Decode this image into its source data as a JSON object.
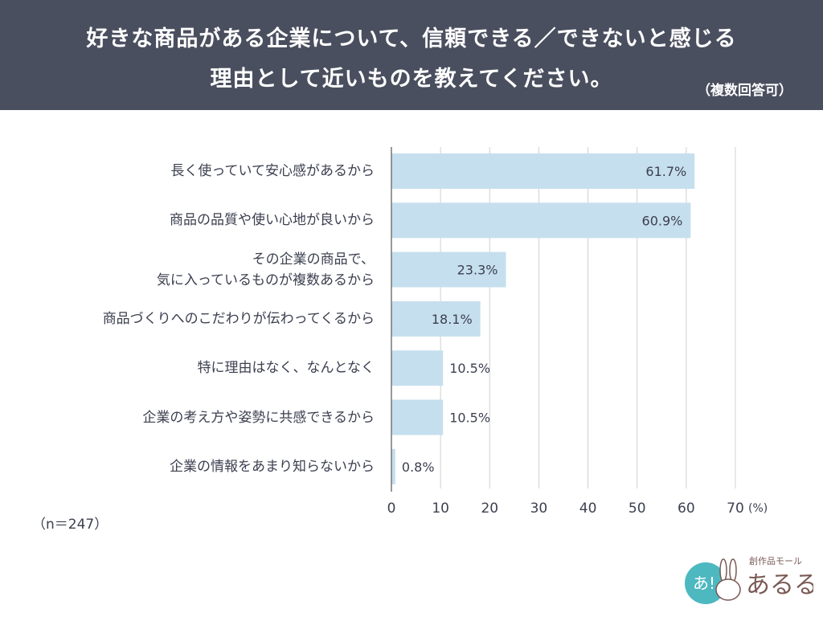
{
  "header": {
    "title_line1": "好きな商品がある企業について、信頼できる／できないと感じる",
    "title_line2": "理由として近いものを教えてください。",
    "note": "（複数回答可）"
  },
  "sample_size": "（n＝247）",
  "logo": {
    "text": "創作品モール あるる",
    "mark": "あ!"
  },
  "colors": {
    "header_bg": "#4a4f5f",
    "bar": "#c6dfee",
    "text": "#3c4050",
    "grid": "#d0d0d0",
    "logo_teal": "#4db8c0",
    "logo_brown": "#7a5a55"
  },
  "chart_data": {
    "type": "bar",
    "orientation": "horizontal",
    "categories": [
      [
        "長く使っていて安心感があるから"
      ],
      [
        "商品の品質や使い心地が良いから"
      ],
      [
        "その企業の商品で、",
        "気に入っているものが複数あるから"
      ],
      [
        "商品づくりへのこだわりが伝わってくるから"
      ],
      [
        "特に理由はなく、なんとなく"
      ],
      [
        "企業の考え方や姿勢に共感できるから"
      ],
      [
        "企業の情報をあまり知らないから"
      ]
    ],
    "values": [
      61.7,
      60.9,
      23.3,
      18.1,
      10.5,
      10.5,
      0.8
    ],
    "data_labels": [
      "61.7%",
      "60.9%",
      "23.3%",
      "18.1%",
      "10.5%",
      "10.5%",
      "0.8%"
    ],
    "xlim": [
      0,
      70
    ],
    "xticks": [
      "0",
      "10",
      "20",
      "30",
      "40",
      "50",
      "60",
      "70"
    ],
    "xunit": "(%)",
    "grid": true
  }
}
